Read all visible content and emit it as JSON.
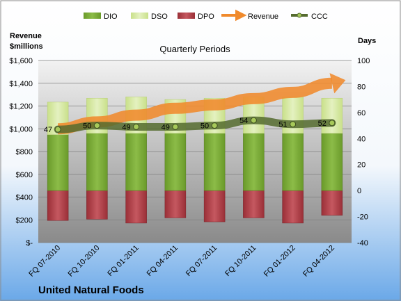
{
  "colors": {
    "dio": "#7fa63a",
    "dso": "#d7e9a8",
    "dpo": "#b3424a",
    "revenue": "#f08a2c",
    "ccc": "#556b2f",
    "background_top": "#ffffff",
    "background_bottom": "#6aa8e8"
  },
  "chart_data": {
    "type": "bar",
    "subtitle": "Quarterly Periods",
    "company": "United Natural Foods",
    "left_axis_label": [
      "Revenue",
      "$millions"
    ],
    "right_axis_label": "Days",
    "categories": [
      "FQ 07-2010",
      "FQ 10-2010",
      "FQ 01-2011",
      "FQ 04-2011",
      "FQ 07-2011",
      "FQ 10-2011",
      "FQ 01-2012",
      "FQ 04-2012"
    ],
    "left_ticks": [
      "$-",
      "$200",
      "$400",
      "$600",
      "$800",
      "$1,000",
      "$1,200",
      "$1,400",
      "$1,600"
    ],
    "left_ylim": [
      0,
      1600
    ],
    "right_ticks": [
      "-40",
      "-20",
      "0",
      "20",
      "40",
      "60",
      "80",
      "100"
    ],
    "right_ylim": [
      -40,
      100
    ],
    "legend": [
      "DIO",
      "DSO",
      "DPO",
      "Revenue",
      "CCC"
    ],
    "series": [
      {
        "name": "DIO",
        "values": [
          43,
          44,
          44,
          44,
          44,
          44,
          44,
          44
        ]
      },
      {
        "name": "DSO",
        "values": [
          25,
          27,
          28,
          26,
          27,
          28,
          28,
          27
        ]
      },
      {
        "name": "DPO",
        "values": [
          -23,
          -22,
          -25,
          -21,
          -24,
          -21,
          -25,
          -19
        ]
      },
      {
        "name": "CCC",
        "values": [
          47,
          50,
          49,
          49,
          50,
          54,
          51,
          52
        ]
      },
      {
        "name": "Revenue",
        "values": [
          1000,
          1060,
          1120,
          1180,
          1210,
          1265,
          1320,
          1400
        ]
      }
    ]
  }
}
